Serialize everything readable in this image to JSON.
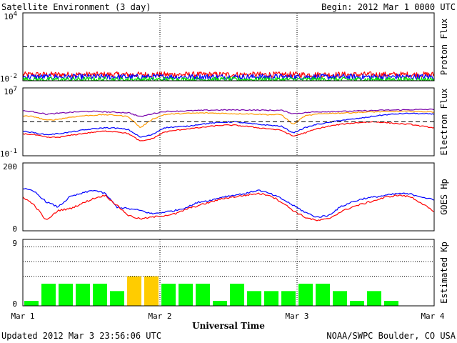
{
  "header": {
    "title": "Satellite Environment (3 day)",
    "begin": "Begin:  2012 Mar 1 0000 UTC"
  },
  "footer": {
    "updated": "Updated 2012 Mar  3 23:56:06 UTC",
    "credit": "NOAA/SWPC Boulder, CO USA"
  },
  "chart_data": [
    {
      "type": "line",
      "ylabel": "Proton Flux",
      "scale": "log",
      "ylim": [
        0.01,
        10000
      ],
      "ytick_labels": [
        {
          "base": "10",
          "exp": "4"
        },
        {
          "base": "10",
          "exp": "-2"
        }
      ],
      "threshold": 10,
      "series": [
        {
          "color": "#ff0000",
          "base": 0.035,
          "spread": 0.5
        },
        {
          "color": "#0000ff",
          "base": 0.022,
          "spread": 0.5
        },
        {
          "color": "#00dd00",
          "base": 0.013,
          "spread": 0.4
        }
      ]
    },
    {
      "type": "line",
      "ylabel": "Electron Flux",
      "scale": "log",
      "ylim": [
        0.1,
        10000000
      ],
      "ytick_labels": [
        {
          "base": "10",
          "exp": "7"
        },
        {
          "base": "10",
          "exp": "-1"
        }
      ],
      "threshold": 1000,
      "series": [
        {
          "color": "#7700aa",
          "values": [
            20000,
            15000,
            8000,
            10000,
            13000,
            16000,
            17000,
            15000,
            13000,
            12000,
            4000,
            9000,
            16000,
            18000,
            20000,
            22000,
            24000,
            25000,
            25000,
            25000,
            24000,
            23000,
            23000,
            9000,
            12000,
            15000,
            16000,
            17000,
            18000,
            20000,
            22000,
            24000,
            25000,
            27000,
            28000,
            30000
          ]
        },
        {
          "color": "#ff9900",
          "values": [
            5000,
            4000,
            1500,
            2000,
            3500,
            5000,
            6000,
            7000,
            6000,
            4000,
            200,
            2000,
            7000,
            9000,
            10000,
            11000,
            11000,
            10000,
            9000,
            9000,
            8000,
            7000,
            7000,
            500,
            5000,
            8000,
            10000,
            11000,
            12000,
            14000,
            15000,
            16000,
            17000,
            17000,
            16000,
            15000
          ]
        },
        {
          "color": "#0000ff",
          "values": [
            80,
            50,
            30,
            40,
            60,
            100,
            150,
            200,
            180,
            120,
            15,
            30,
            200,
            250,
            300,
            500,
            700,
            900,
            1000,
            700,
            500,
            400,
            300,
            50,
            200,
            500,
            800,
            1500,
            2000,
            3000,
            5000,
            7000,
            9000,
            10000,
            9000,
            8000
          ]
        },
        {
          "color": "#ff0000",
          "values": [
            40,
            30,
            15,
            15,
            25,
            40,
            60,
            80,
            70,
            40,
            5,
            10,
            60,
            100,
            150,
            200,
            300,
            400,
            400,
            300,
            200,
            150,
            100,
            20,
            50,
            150,
            300,
            500,
            700,
            900,
            1000,
            800,
            600,
            500,
            300,
            200
          ]
        }
      ]
    },
    {
      "type": "line",
      "ylabel": "GOES Hp",
      "ylim": [
        0,
        200
      ],
      "ytick_labels": [
        "200",
        "0"
      ],
      "series": [
        {
          "color": "#0000ff",
          "values": [
            125,
            115,
            85,
            70,
            100,
            110,
            120,
            110,
            70,
            65,
            60,
            50,
            55,
            60,
            70,
            85,
            90,
            100,
            105,
            110,
            120,
            110,
            95,
            75,
            55,
            40,
            45,
            70,
            85,
            95,
            100,
            105,
            110,
            108,
            100,
            90
          ]
        },
        {
          "color": "#ff0000",
          "values": [
            100,
            75,
            30,
            60,
            65,
            80,
            95,
            105,
            75,
            45,
            35,
            40,
            45,
            50,
            65,
            75,
            85,
            95,
            100,
            105,
            110,
            105,
            85,
            60,
            40,
            30,
            35,
            55,
            70,
            80,
            90,
            100,
            105,
            100,
            80,
            55
          ]
        }
      ]
    },
    {
      "type": "bar",
      "ylabel": "Estimated Kp",
      "ylim": [
        0,
        9
      ],
      "ytick_labels": [
        "9",
        "0"
      ],
      "gridlines": [
        4,
        6,
        8
      ],
      "values": [
        0.67,
        3.0,
        3.0,
        3.0,
        3.0,
        2.0,
        4.0,
        4.0,
        3.0,
        3.0,
        3.0,
        0.67,
        3.0,
        2.0,
        2.0,
        2.0,
        3.0,
        3.0,
        2.0,
        0.67,
        2.0,
        0.67
      ],
      "colors": [
        "#00ff00",
        "#00ff00",
        "#00ff00",
        "#00ff00",
        "#00ff00",
        "#00ff00",
        "#ffcc00",
        "#ffcc00",
        "#00ff00",
        "#00ff00",
        "#00ff00",
        "#00ff00",
        "#00ff00",
        "#00ff00",
        "#00ff00",
        "#00ff00",
        "#00ff00",
        "#00ff00",
        "#00ff00",
        "#00ff00",
        "#00ff00",
        "#00ff00"
      ],
      "bar_slots": 24
    }
  ],
  "x_axis": {
    "xlabel": "Universal Time",
    "days": 3,
    "tick_labels": [
      "Mar 1",
      "Mar 2",
      "Mar 3",
      "Mar 4"
    ]
  }
}
